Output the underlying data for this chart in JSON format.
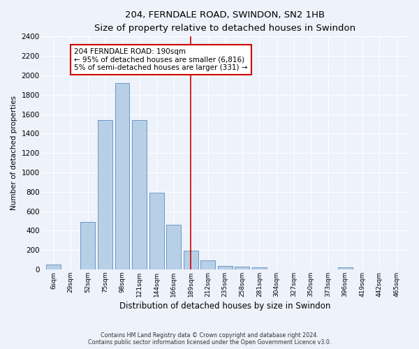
{
  "title": "204, FERNDALE ROAD, SWINDON, SN2 1HB",
  "subtitle": "Size of property relative to detached houses in Swindon",
  "xlabel": "Distribution of detached houses by size in Swindon",
  "ylabel": "Number of detached properties",
  "bar_color": "#b8cfe8",
  "bar_edge_color": "#5b8dc0",
  "background_color": "#eef2fa",
  "grid_color": "white",
  "categories": [
    "6sqm",
    "29sqm",
    "52sqm",
    "75sqm",
    "98sqm",
    "121sqm",
    "144sqm",
    "166sqm",
    "189sqm",
    "212sqm",
    "235sqm",
    "258sqm",
    "281sqm",
    "304sqm",
    "327sqm",
    "350sqm",
    "373sqm",
    "396sqm",
    "419sqm",
    "442sqm",
    "465sqm"
  ],
  "values": [
    50,
    0,
    490,
    1540,
    1920,
    1540,
    790,
    460,
    190,
    90,
    35,
    30,
    20,
    0,
    0,
    0,
    0,
    20,
    0,
    0,
    0
  ],
  "ylim": [
    0,
    2400
  ],
  "yticks": [
    0,
    200,
    400,
    600,
    800,
    1000,
    1200,
    1400,
    1600,
    1800,
    2000,
    2200,
    2400
  ],
  "vline_index": 8,
  "vline_color": "#cc0000",
  "annotation_line1": "204 FERNDALE ROAD: 190sqm",
  "annotation_line2": "← 95% of detached houses are smaller (6,816)",
  "annotation_line3": "5% of semi-detached houses are larger (331) →",
  "annotation_box_color": "#cc0000",
  "footer_line1": "Contains HM Land Registry data © Crown copyright and database right 2024.",
  "footer_line2": "Contains public sector information licensed under the Open Government Licence v3.0."
}
